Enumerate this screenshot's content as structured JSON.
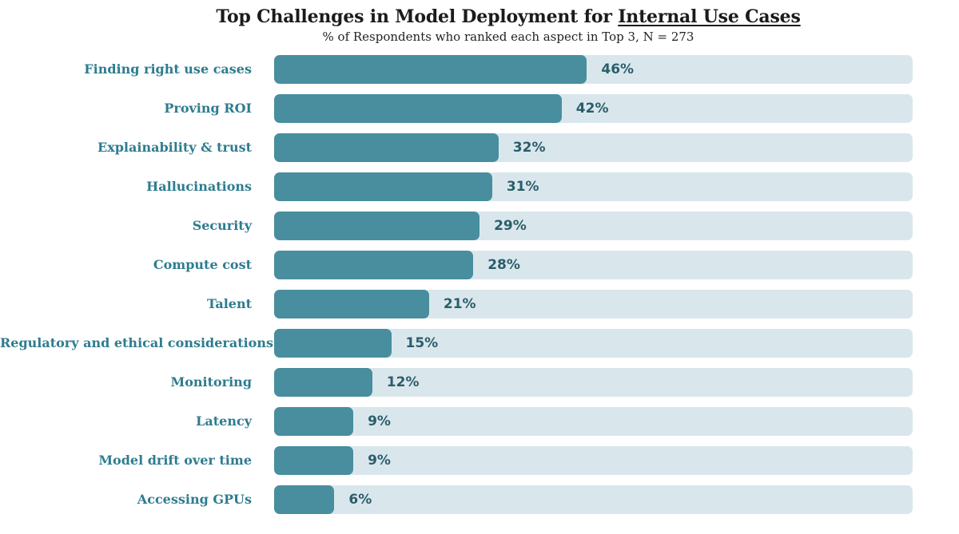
{
  "header": {
    "title_prefix": "Top Challenges in Model Deployment for ",
    "title_underlined": "Internal Use Cases",
    "subtitle": "% of Respondents who ranked each aspect in Top 3, N = 273"
  },
  "chart_data": {
    "type": "bar",
    "orientation": "horizontal",
    "title": "Top Challenges in Model Deployment for Internal Use Cases",
    "subtitle": "% of Respondents who ranked each aspect in Top 3, N = 273",
    "sample_size": 273,
    "categories": [
      "Finding right use cases",
      "Proving ROI",
      "Explainability & trust",
      "Hallucinations",
      "Security",
      "Compute cost",
      "Talent",
      "Regulatory and ethical considerations",
      "Monitoring",
      "Latency",
      "Model drift over time",
      "Accessing GPUs"
    ],
    "values": [
      46,
      42,
      32,
      31,
      29,
      28,
      21,
      15,
      12,
      9,
      9,
      6
    ],
    "value_suffix": "%",
    "xlabel": "",
    "ylabel": "",
    "xlim": [
      0,
      100
    ],
    "grid": false,
    "legend": false,
    "value_labels_position": "right-of-bar",
    "colors": {
      "bar": "#488E9E",
      "track": "#D9E7EC",
      "category_label": "#2E7C8F",
      "value_label": "#2B5D6B",
      "title": "#1B1B1B",
      "background": "#FFFFFF"
    }
  }
}
